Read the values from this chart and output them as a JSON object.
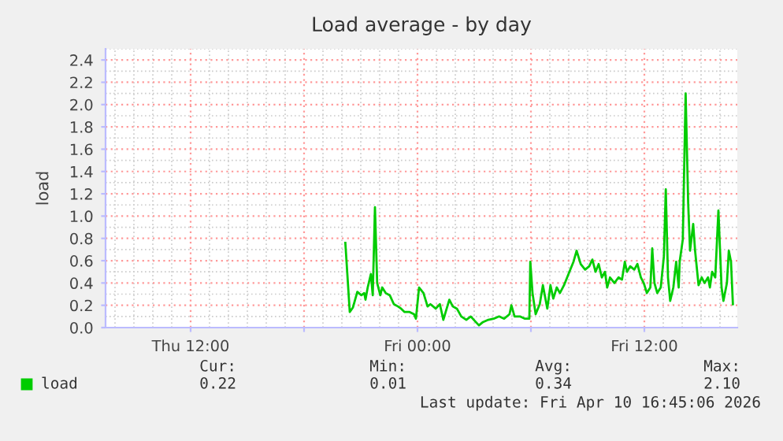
{
  "chart_data": {
    "type": "line",
    "title": "Load average - by day",
    "ylabel": "load",
    "x": [
      "2026-04-09T20:11",
      "2026-04-09T20:25",
      "2026-04-09T20:35",
      "2026-04-09T20:49",
      "2026-04-09T21:02",
      "2026-04-09T21:11",
      "2026-04-09T21:15",
      "2026-04-09T21:22",
      "2026-04-09T21:32",
      "2026-04-09T21:38",
      "2026-04-09T21:45",
      "2026-04-09T21:52",
      "2026-04-09T22:02",
      "2026-04-09T22:08",
      "2026-04-09T22:19",
      "2026-04-09T22:32",
      "2026-04-09T22:45",
      "2026-04-09T22:58",
      "2026-04-09T23:08",
      "2026-04-09T23:19",
      "2026-04-09T23:35",
      "2026-04-09T23:49",
      "2026-04-09T23:55",
      "2026-04-10T00:05",
      "2026-04-10T00:19",
      "2026-04-10T00:32",
      "2026-04-10T00:41",
      "2026-04-10T00:58",
      "2026-04-10T01:11",
      "2026-04-10T01:22",
      "2026-04-10T01:41",
      "2026-04-10T01:52",
      "2026-04-10T02:05",
      "2026-04-10T02:19",
      "2026-04-10T02:35",
      "2026-04-10T02:49",
      "2026-04-10T03:05",
      "2026-04-10T03:15",
      "2026-04-10T03:28",
      "2026-04-10T03:45",
      "2026-04-10T04:02",
      "2026-04-10T04:19",
      "2026-04-10T04:35",
      "2026-04-10T04:52",
      "2026-04-10T04:58",
      "2026-04-10T05:08",
      "2026-04-10T05:25",
      "2026-04-10T05:41",
      "2026-04-10T05:55",
      "2026-04-10T05:58",
      "2026-04-10T06:05",
      "2026-04-10T06:15",
      "2026-04-10T06:28",
      "2026-04-10T06:38",
      "2026-04-10T06:52",
      "2026-04-10T07:02",
      "2026-04-10T07:11",
      "2026-04-10T07:22",
      "2026-04-10T07:32",
      "2026-04-10T07:45",
      "2026-04-10T08:02",
      "2026-04-10T08:15",
      "2026-04-10T08:25",
      "2026-04-10T08:38",
      "2026-04-10T08:52",
      "2026-04-10T09:05",
      "2026-04-10T09:15",
      "2026-04-10T09:25",
      "2026-04-10T09:35",
      "2026-04-10T09:45",
      "2026-04-10T09:55",
      "2026-04-10T10:02",
      "2026-04-10T10:11",
      "2026-04-10T10:25",
      "2026-04-10T10:38",
      "2026-04-10T10:49",
      "2026-04-10T10:58",
      "2026-04-10T11:05",
      "2026-04-10T11:15",
      "2026-04-10T11:28",
      "2026-04-10T11:38",
      "2026-04-10T11:49",
      "2026-04-10T11:58",
      "2026-04-10T12:08",
      "2026-04-10T12:19",
      "2026-04-10T12:25",
      "2026-04-10T12:32",
      "2026-04-10T12:41",
      "2026-04-10T12:52",
      "2026-04-10T13:02",
      "2026-04-10T13:08",
      "2026-04-10T13:15",
      "2026-04-10T13:22",
      "2026-04-10T13:32",
      "2026-04-10T13:41",
      "2026-04-10T13:49",
      "2026-04-10T13:52",
      "2026-04-10T14:02",
      "2026-04-10T14:11",
      "2026-04-10T14:19",
      "2026-04-10T14:25",
      "2026-04-10T14:35",
      "2026-04-10T14:41",
      "2026-04-10T14:52",
      "2026-04-10T15:02",
      "2026-04-10T15:11",
      "2026-04-10T15:22",
      "2026-04-10T15:28",
      "2026-04-10T15:35",
      "2026-04-10T15:45",
      "2026-04-10T15:55",
      "2026-04-10T16:05",
      "2026-04-10T16:11",
      "2026-04-10T16:22",
      "2026-04-10T16:28",
      "2026-04-10T16:35",
      "2026-04-10T16:41"
    ],
    "series": [
      {
        "name": "load",
        "color": "#00cc00",
        "values": [
          0.76,
          0.14,
          0.18,
          0.32,
          0.29,
          0.31,
          0.25,
          0.36,
          0.48,
          0.29,
          1.08,
          0.4,
          0.29,
          0.36,
          0.31,
          0.29,
          0.21,
          0.19,
          0.17,
          0.14,
          0.14,
          0.12,
          0.08,
          0.36,
          0.31,
          0.19,
          0.21,
          0.17,
          0.21,
          0.07,
          0.25,
          0.19,
          0.17,
          0.1,
          0.07,
          0.1,
          0.05,
          0.02,
          0.05,
          0.07,
          0.08,
          0.1,
          0.08,
          0.12,
          0.2,
          0.1,
          0.1,
          0.08,
          0.08,
          0.59,
          0.31,
          0.12,
          0.21,
          0.38,
          0.17,
          0.38,
          0.26,
          0.36,
          0.31,
          0.38,
          0.5,
          0.59,
          0.69,
          0.57,
          0.52,
          0.55,
          0.61,
          0.5,
          0.57,
          0.45,
          0.5,
          0.36,
          0.45,
          0.4,
          0.45,
          0.43,
          0.59,
          0.5,
          0.55,
          0.52,
          0.57,
          0.45,
          0.4,
          0.31,
          0.36,
          0.71,
          0.4,
          0.31,
          0.36,
          0.64,
          1.24,
          0.45,
          0.24,
          0.36,
          0.59,
          0.36,
          0.59,
          0.79,
          2.1,
          1.12,
          0.69,
          0.93,
          0.69,
          0.38,
          0.45,
          0.4,
          0.45,
          0.36,
          0.5,
          0.45,
          1.05,
          0.36,
          0.24,
          0.4,
          0.69,
          0.59,
          0.21
        ]
      }
    ],
    "xlim": [
      "2026-04-09T07:30",
      "2026-04-10T16:55"
    ],
    "xticks": [
      {
        "value": "2026-04-09T12:00",
        "label": "Thu 12:00"
      },
      {
        "value": "2026-04-09T18:00",
        "label": null
      },
      {
        "value": "2026-04-10T00:00",
        "label": "Fri 00:00"
      },
      {
        "value": "2026-04-10T06:00",
        "label": null
      },
      {
        "value": "2026-04-10T12:00",
        "label": "Fri 12:00"
      }
    ],
    "ylim": [
      0,
      2.5
    ],
    "yticks": [
      {
        "value": 0,
        "label": "0.0"
      },
      0.2,
      0.4,
      0.6,
      0.8,
      {
        "value": 1,
        "label": "1.0"
      },
      1.2,
      1.4,
      1.6,
      1.8,
      {
        "value": 2,
        "label": "2.0"
      },
      2.2,
      2.4
    ],
    "grid": true,
    "legend": "bottom",
    "marker": "none",
    "line_style": "solid",
    "annotations": [
      "Cur:",
      "Min:",
      "Avg:",
      "Max:",
      "0.22",
      "0.01",
      "0.34",
      "2.10",
      "Last update: Fri Apr 10 16:45:06 2026"
    ]
  }
}
